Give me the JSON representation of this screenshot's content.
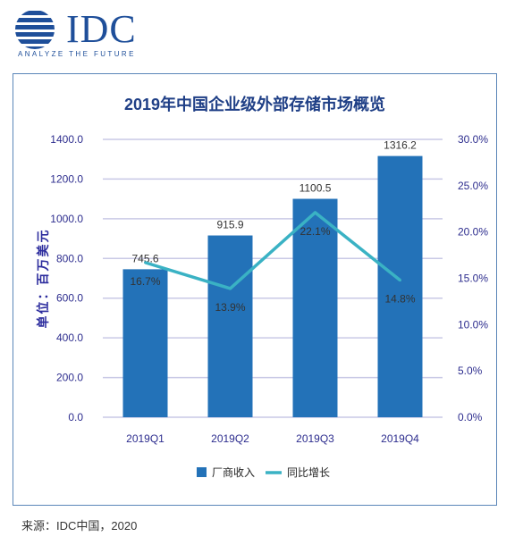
{
  "header": {
    "logo_text": "IDC",
    "logo_tagline": "ANALYZE THE FUTURE"
  },
  "footer": {
    "source": "来源：IDC中国，2020"
  },
  "colors": {
    "bar": "#2372b8",
    "line": "#3ab2c4",
    "title": "#1f3f86",
    "grid": "#c9c9e6",
    "axis_text": "#2d2d8e"
  },
  "chart_data": {
    "type": "bar",
    "title": "2019年中国企业级外部存储市场概览",
    "ylabel": "单位：百万美元",
    "categories": [
      "2019Q1",
      "2019Q2",
      "2019Q3",
      "2019Q4"
    ],
    "ylim": [
      0,
      1400
    ],
    "y2lim": [
      0,
      30
    ],
    "y_ticks": [
      "0.0",
      "200.0",
      "400.0",
      "600.0",
      "800.0",
      "1000.0",
      "1200.0",
      "1400.0"
    ],
    "y2_ticks": [
      "0.0%",
      "5.0%",
      "10.0%",
      "15.0%",
      "20.0%",
      "25.0%",
      "30.0%"
    ],
    "grid": true,
    "legend_position": "bottom",
    "series": [
      {
        "name": "厂商收入",
        "type": "bar",
        "axis": "left",
        "values": [
          745.6,
          915.9,
          1100.5,
          1316.2
        ],
        "labels": [
          "745.6",
          "915.9",
          "1100.5",
          "1316.2"
        ]
      },
      {
        "name": "同比增长",
        "type": "line",
        "axis": "right",
        "values": [
          16.7,
          13.9,
          22.1,
          14.8
        ],
        "labels": [
          "16.7%",
          "13.9%",
          "22.1%",
          "14.8%"
        ]
      }
    ]
  }
}
